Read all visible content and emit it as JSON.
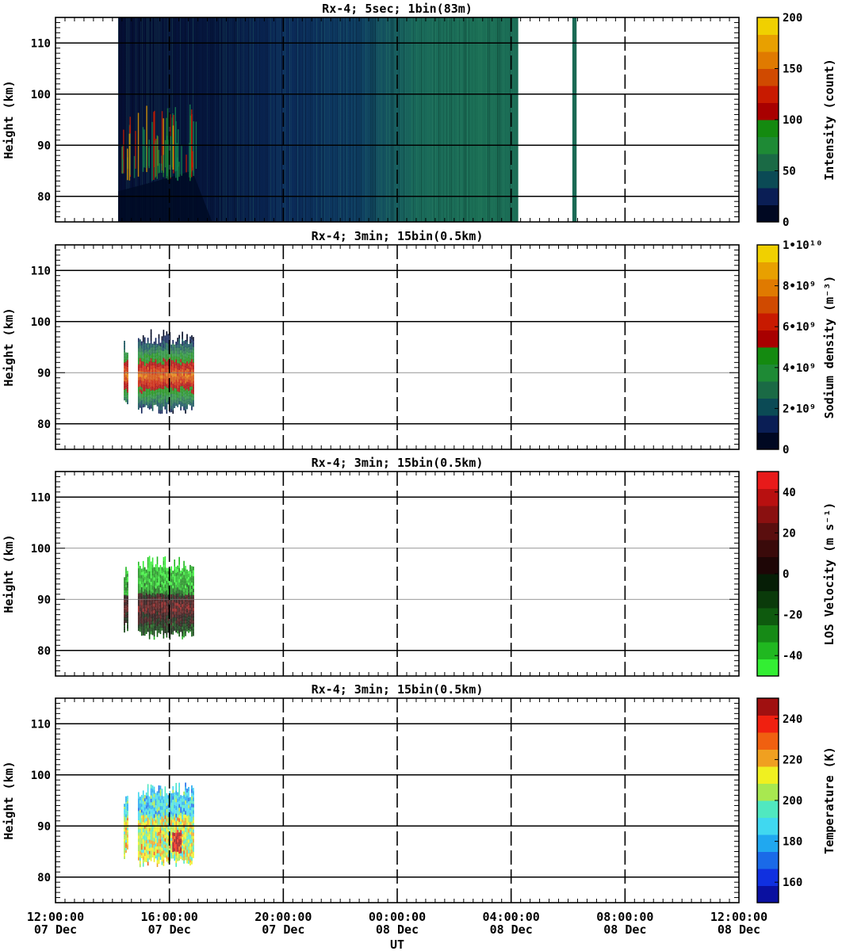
{
  "figure": {
    "x_axis_label": "UT",
    "x_ticks": [
      {
        "line1": "12:00:00",
        "line2": "07 Dec",
        "hours": 0
      },
      {
        "line1": "16:00:00",
        "line2": "07 Dec",
        "hours": 4
      },
      {
        "line1": "20:00:00",
        "line2": "07 Dec",
        "hours": 8
      },
      {
        "line1": "00:00:00",
        "line2": "08 Dec",
        "hours": 12
      },
      {
        "line1": "04:00:00",
        "line2": "08 Dec",
        "hours": 16
      },
      {
        "line1": "08:00:00",
        "line2": "08 Dec",
        "hours": 20
      },
      {
        "line1": "12:00:00",
        "line2": "08 Dec",
        "hours": 24
      }
    ],
    "y_axis_label": "Height (km)",
    "y_ticks": [
      80,
      90,
      100,
      110
    ],
    "y_range_km": [
      75,
      115
    ],
    "x_range_hours_since_12UT_07Dec": [
      0,
      24
    ]
  },
  "chart_data": [
    {
      "type": "heatmap",
      "title": "Rx-4;  5sec; 1bin(83m)",
      "ylabel": "Height (km)",
      "xlabel": "UT",
      "ylim": [
        75,
        115
      ],
      "colorbar": {
        "label": "Intensity (count)",
        "range": [
          0,
          200
        ],
        "ticks": [
          "0",
          "50",
          "100",
          "150",
          "200"
        ],
        "colors": [
          "#000822",
          "#0a1e55",
          "#0b4a55",
          "#1a6a45",
          "#1e8a35",
          "#148a10",
          "#a80000",
          "#c81a00",
          "#d04a00",
          "#e07a00",
          "#e8a000",
          "#f0d000"
        ]
      },
      "data_coverage_hours": [
        [
          2.2,
          16.25
        ],
        [
          18.15,
          18.3
        ]
      ],
      "sodium_layer_km": [
        82,
        98
      ]
    },
    {
      "type": "heatmap",
      "title": "Rx-4; 3min; 15bin(0.5km)",
      "ylabel": "Height (km)",
      "xlabel": "UT",
      "ylim": [
        75,
        115
      ],
      "colorbar": {
        "label": "Sodium density (m⁻³)",
        "range": [
          0,
          10000000000
        ],
        "ticks": [
          "0",
          "2•10⁹",
          "4•10⁹",
          "6•10⁹",
          "8•10⁹",
          "1•10¹⁰"
        ],
        "colors": [
          "#000822",
          "#0a1e55",
          "#0b4a55",
          "#1a6a45",
          "#1e8a35",
          "#148a10",
          "#a80000",
          "#c81a00",
          "#d04a00",
          "#e07a00",
          "#e8a000",
          "#f0d000"
        ]
      },
      "data_coverage_hours": [
        [
          2.4,
          4.85
        ]
      ],
      "layer_km": [
        82,
        98.5
      ],
      "peak_km": 89.5
    },
    {
      "type": "heatmap",
      "title": "Rx-4; 3min; 15bin(0.5km)",
      "ylabel": "Height (km)",
      "xlabel": "UT",
      "ylim": [
        75,
        115
      ],
      "colorbar": {
        "label": "LOS Velocity (m s⁻¹)",
        "range": [
          -50,
          50
        ],
        "ticks": [
          "-40",
          "-20",
          "0",
          "20",
          "40"
        ],
        "colors": [
          "#33ee33",
          "#20b820",
          "#168a16",
          "#0e5a0e",
          "#0a3a0a",
          "#061e06",
          "#1e0606",
          "#3a0a0a",
          "#5a0e0e",
          "#8a1010",
          "#b81010",
          "#e81a1a"
        ]
      },
      "data_coverage_hours": [
        [
          2.4,
          4.85
        ]
      ],
      "layer_km": [
        82,
        98.5
      ]
    },
    {
      "type": "heatmap",
      "title": "Rx-4; 3min; 15bin(0.5km)",
      "ylabel": "Height (km)",
      "xlabel": "UT",
      "ylim": [
        75,
        115
      ],
      "colorbar": {
        "label": "Temperature (K)",
        "range": [
          150,
          250
        ],
        "ticks": [
          "160",
          "180",
          "200",
          "220",
          "240"
        ],
        "colors": [
          "#0a10a0",
          "#1030e0",
          "#1a6ae8",
          "#20a8f0",
          "#40d8f0",
          "#50e8c0",
          "#a8e850",
          "#f0f020",
          "#f0a020",
          "#f06010",
          "#f02010",
          "#a01010"
        ]
      },
      "data_coverage_hours": [
        [
          2.4,
          4.85
        ]
      ],
      "layer_km": [
        82,
        98.5
      ]
    }
  ]
}
